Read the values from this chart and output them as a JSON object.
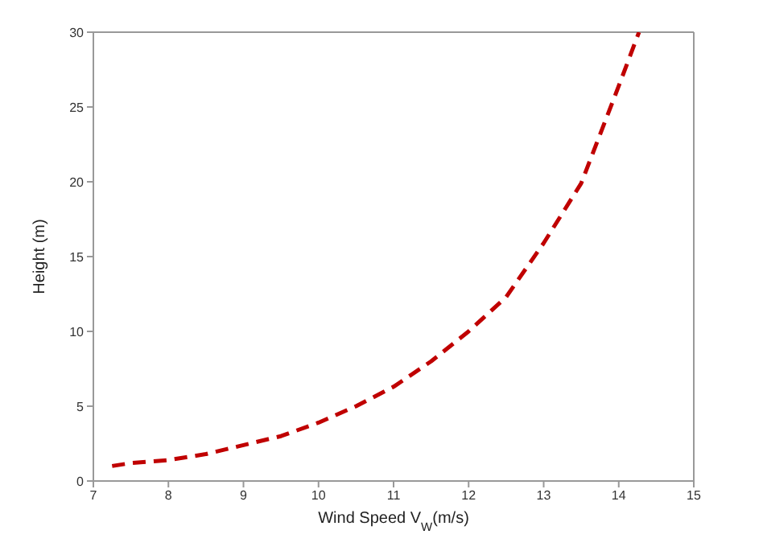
{
  "chart_data": {
    "type": "line",
    "xlabel": "Wind Speed V$_{W}$(m/s)",
    "ylabel": "Height (m)",
    "x": [
      7.25,
      7.5,
      8,
      8.5,
      9,
      9.5,
      10,
      10.5,
      11,
      11.5,
      12,
      12.5,
      13,
      13.5,
      14,
      14.27
    ],
    "series": [
      {
        "color": "#c00000",
        "values": [
          1.0,
          1.2,
          1.4,
          1.8,
          2.4,
          3.0,
          3.9,
          5.0,
          6.3,
          8.0,
          10.0,
          12.3,
          15.9,
          19.9,
          26.4,
          30
        ]
      }
    ],
    "xlim": [
      7,
      15
    ],
    "xticks": [
      7,
      8,
      9,
      10,
      11,
      12,
      13,
      14,
      15
    ],
    "ylim": [
      0,
      30
    ],
    "yticks": [
      0,
      5,
      10,
      15,
      20,
      25,
      30
    ],
    "marker": "none",
    "line_style": "dashed"
  }
}
